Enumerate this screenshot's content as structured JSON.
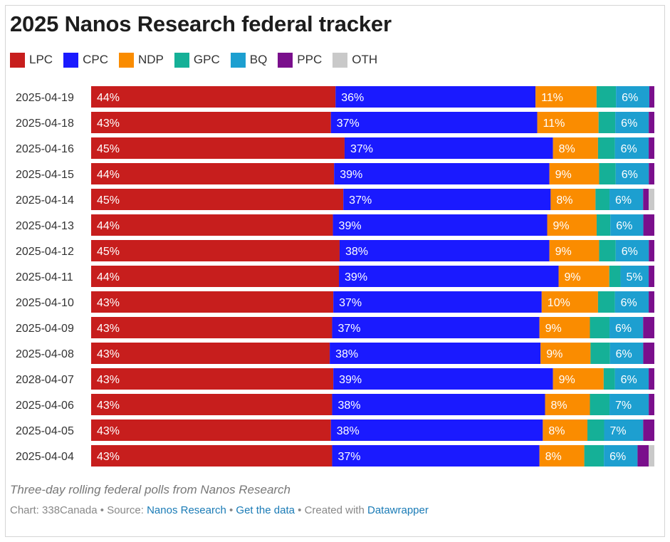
{
  "chart_data": {
    "type": "bar",
    "orientation": "horizontal",
    "stacked": true,
    "title": "2025 Nanos Research federal tracker",
    "description": "Three-day rolling federal polls from Nanos Research",
    "legend_position": "top-left",
    "xlim": [
      0,
      100
    ],
    "categories": [
      "2025-04-19",
      "2025-04-18",
      "2025-04-16",
      "2025-04-15",
      "2025-04-14",
      "2025-04-13",
      "2025-04-12",
      "2025-04-11",
      "2025-04-10",
      "2025-04-09",
      "2025-04-08",
      "2028-04-07",
      "2025-04-06",
      "2025-04-05",
      "2025-04-04"
    ],
    "series": [
      {
        "name": "LPC",
        "color": "#c71e1d",
        "values": [
          44,
          43,
          45,
          44,
          45,
          44,
          45,
          44,
          43,
          43,
          43,
          43,
          43,
          43,
          43
        ]
      },
      {
        "name": "CPC",
        "color": "#1a1aff",
        "values": [
          36,
          37,
          37,
          39,
          37,
          39,
          38,
          39,
          37,
          37,
          38,
          39,
          38,
          38,
          37
        ]
      },
      {
        "name": "NDP",
        "color": "#fa8c00",
        "values": [
          11,
          11,
          8,
          9,
          8,
          9,
          9,
          9,
          10,
          9,
          9,
          9,
          8,
          8,
          8
        ]
      },
      {
        "name": "GPC",
        "color": "#15b097",
        "values": [
          3.5,
          3,
          3,
          3,
          2.5,
          2.5,
          3,
          2,
          3,
          3.5,
          3.5,
          2,
          3.5,
          3,
          3.5
        ]
      },
      {
        "name": "BQ",
        "color": "#1d9fd0",
        "values": [
          6,
          6,
          6,
          6,
          6,
          6,
          6,
          5,
          6,
          6,
          6,
          6,
          7,
          7,
          6
        ]
      },
      {
        "name": "PPC",
        "color": "#7a0f8c",
        "values": [
          0.9,
          1,
          1,
          1,
          1,
          2,
          1,
          1,
          1,
          2,
          2,
          1,
          1,
          2,
          2
        ]
      },
      {
        "name": "OTH",
        "color": "#c9c9c9",
        "values": [
          0,
          0,
          0,
          0,
          1,
          0,
          0,
          0,
          0,
          0,
          0,
          0,
          0,
          0,
          1
        ]
      }
    ],
    "labeled_series": [
      "LPC",
      "CPC",
      "NDP",
      "BQ"
    ]
  },
  "footer": {
    "credit": "Chart: 338Canada",
    "source_prefix": "Source:",
    "source_link": "Nanos Research",
    "data_link": "Get the data",
    "created_prefix": "Created with",
    "created_link": "Datawrapper",
    "separator": "•"
  }
}
